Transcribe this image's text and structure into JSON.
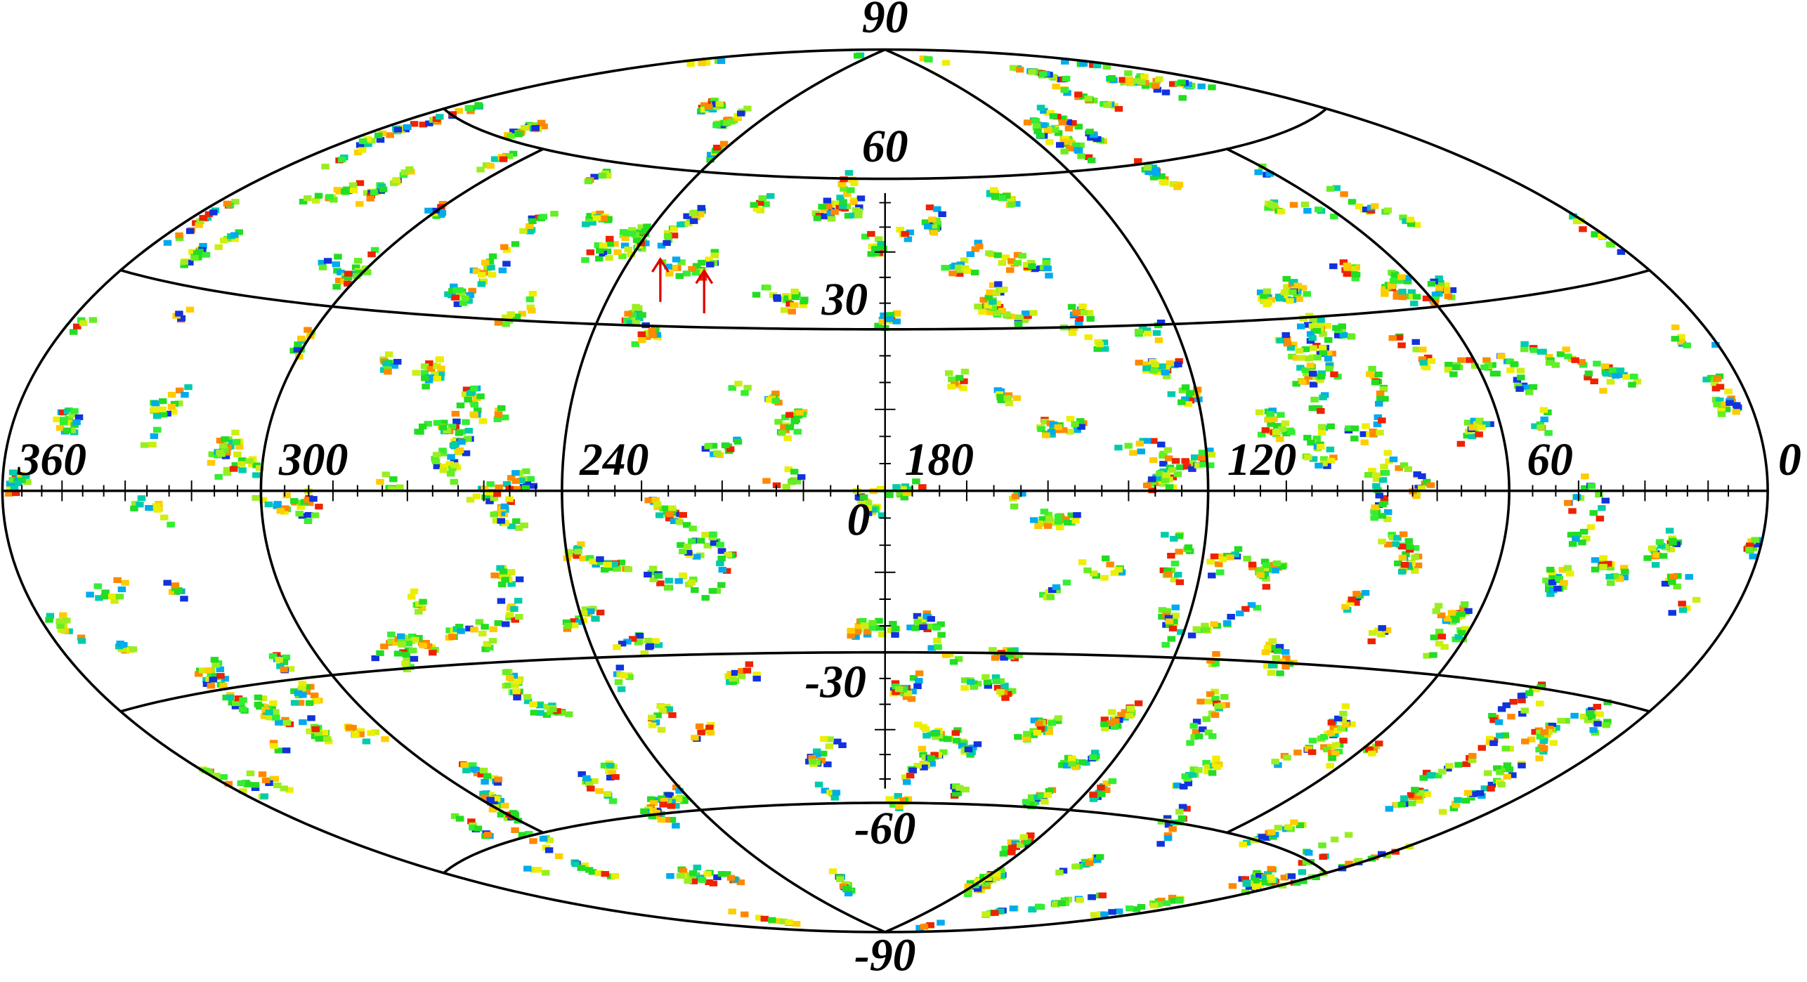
{
  "map": {
    "longitude_labels": [
      "360",
      "300",
      "240",
      "180",
      "120",
      "60",
      "0"
    ],
    "latitude_labels": [
      "90",
      "60",
      "30",
      "0",
      "-30",
      "-60",
      "-90"
    ]
  }
}
